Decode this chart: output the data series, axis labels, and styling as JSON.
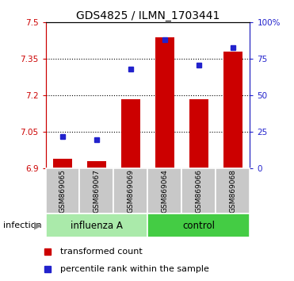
{
  "title": "GDS4825 / ILMN_1703441",
  "samples": [
    "GSM869065",
    "GSM869067",
    "GSM869069",
    "GSM869064",
    "GSM869066",
    "GSM869068"
  ],
  "group_labels": [
    "influenza A",
    "control"
  ],
  "red_values": [
    6.94,
    6.93,
    7.185,
    7.44,
    7.185,
    7.38
  ],
  "blue_values_pct": [
    22,
    20,
    68,
    88,
    71,
    83
  ],
  "ylim_red": [
    6.9,
    7.5
  ],
  "yticks_red": [
    6.9,
    7.05,
    7.2,
    7.35,
    7.5
  ],
  "ytick_labels_red": [
    "6.9",
    "7.05",
    "7.2",
    "7.35",
    "7.5"
  ],
  "ylim_blue_pct": [
    0,
    100
  ],
  "yticks_blue": [
    0,
    25,
    50,
    75,
    100
  ],
  "ytick_labels_blue": [
    "0",
    "25",
    "50",
    "75",
    "100%"
  ],
  "red_color": "#CC0000",
  "blue_color": "#2222CC",
  "bar_bottom": 6.9,
  "legend_red": "transformed count",
  "legend_blue": "percentile rank within the sample",
  "xlabel_group": "infection",
  "bg_color": "#C8C8C8",
  "light_green": "#AAEAAA",
  "dark_green": "#44CC44",
  "grid_ticks": [
    7.05,
    7.2,
    7.35
  ],
  "bar_width": 0.55,
  "title_fontsize": 10,
  "tick_fontsize": 7.5,
  "sample_fontsize": 6.5,
  "group_fontsize": 8.5,
  "legend_fontsize": 8
}
